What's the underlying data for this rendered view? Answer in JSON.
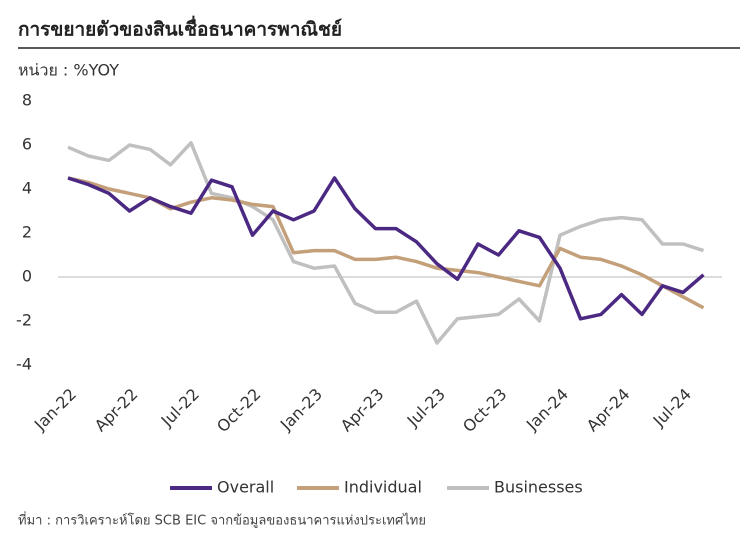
{
  "chart_data": {
    "type": "line",
    "title": "การขยายตัวของสินเชื่อธนาคารพาณิชย์",
    "subtitle": "หน่วย : %YOY",
    "source": "ที่มา : การวิเคราะห์โดย SCB EIC จากข้อมูลของธนาคารแห่งประเทศไทย",
    "categories": [
      "Jan-22",
      null,
      null,
      "Apr-22",
      null,
      null,
      "Jul-22",
      null,
      null,
      "Oct-22",
      null,
      null,
      "Jan-23",
      null,
      null,
      "Apr-23",
      null,
      null,
      "Jul-23",
      null,
      null,
      "Oct-23",
      null,
      null,
      "Jan-24",
      null,
      null,
      "Apr-24",
      null,
      null,
      "Jul-24",
      null
    ],
    "series": [
      {
        "name": "Overall",
        "color": "#4b2882",
        "values": [
          4.5,
          4.2,
          3.8,
          3.0,
          3.6,
          3.2,
          2.9,
          4.4,
          4.1,
          1.9,
          3.0,
          2.6,
          3.0,
          4.5,
          3.1,
          2.2,
          2.2,
          1.6,
          0.6,
          -0.1,
          1.5,
          1.0,
          2.1,
          1.8,
          0.4,
          -1.9,
          -1.7,
          -0.8,
          -1.7,
          -0.4,
          -0.7,
          0.1
        ]
      },
      {
        "name": "Individual",
        "color": "#c4a07a",
        "values": [
          4.5,
          4.3,
          4.0,
          3.8,
          3.6,
          3.1,
          3.4,
          3.6,
          3.5,
          3.3,
          3.2,
          1.1,
          1.2,
          1.2,
          0.8,
          0.8,
          0.9,
          0.7,
          0.4,
          0.3,
          0.2,
          0.0,
          -0.2,
          -0.4,
          1.3,
          0.9,
          0.8,
          0.5,
          0.1,
          -0.4,
          -0.9,
          -1.4
        ]
      },
      {
        "name": "Businesses",
        "color": "#c0c0c0",
        "values": [
          5.9,
          5.5,
          5.3,
          6.0,
          5.8,
          5.1,
          6.1,
          3.8,
          3.6,
          3.2,
          2.6,
          0.7,
          0.4,
          0.5,
          -1.2,
          -1.6,
          -1.6,
          -1.1,
          -3.0,
          -1.9,
          -1.8,
          -1.7,
          -1.0,
          -2.0,
          1.9,
          2.3,
          2.6,
          2.7,
          2.6,
          1.5,
          1.5,
          1.2
        ]
      }
    ],
    "ylim": [
      -4,
      8
    ],
    "yticks": [
      -4,
      -2,
      0,
      2,
      4,
      6,
      8
    ],
    "grid": false
  }
}
